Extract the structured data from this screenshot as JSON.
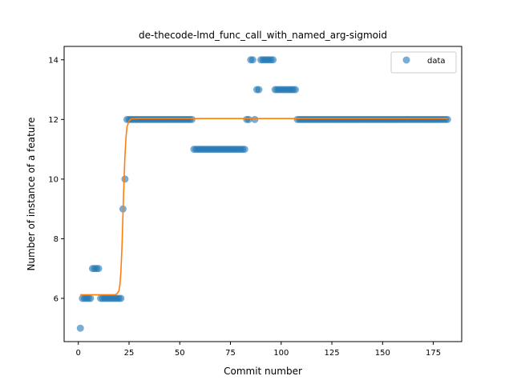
{
  "chart_data": {
    "type": "scatter",
    "title": "de-thecode-lmd_func_call_with_named_arg-sigmoid",
    "xlabel": "Commit number",
    "ylabel": "Number of instance of a feature",
    "xlim": [
      -7,
      189
    ],
    "ylim": [
      4.55,
      14.45
    ],
    "xticks": [
      0,
      25,
      50,
      75,
      100,
      125,
      150,
      175
    ],
    "yticks": [
      6,
      8,
      10,
      12,
      14
    ],
    "grid": false,
    "legend": {
      "position": "top-right",
      "entries": [
        "data"
      ]
    },
    "colors": {
      "data": "#1f77b4",
      "fit": "#ff7f0e"
    },
    "series": [
      {
        "name": "data",
        "kind": "scatter",
        "points": [
          [
            1,
            5
          ],
          [
            2,
            6
          ],
          [
            3,
            6
          ],
          [
            4,
            6
          ],
          [
            5,
            6
          ],
          [
            6,
            6
          ],
          [
            7,
            7
          ],
          [
            8,
            7
          ],
          [
            9,
            7
          ],
          [
            10,
            7
          ],
          [
            11,
            6
          ],
          [
            12,
            6
          ],
          [
            13,
            6
          ],
          [
            14,
            6
          ],
          [
            15,
            6
          ],
          [
            16,
            6
          ],
          [
            17,
            6
          ],
          [
            18,
            6
          ],
          [
            19,
            6
          ],
          [
            20,
            6
          ],
          [
            21,
            6
          ],
          [
            22,
            9
          ],
          [
            23,
            10
          ],
          [
            24,
            12
          ],
          [
            25,
            12
          ],
          [
            26,
            12
          ],
          [
            27,
            12
          ],
          [
            28,
            12
          ],
          [
            29,
            12
          ],
          [
            30,
            12
          ],
          [
            31,
            12
          ],
          [
            32,
            12
          ],
          [
            33,
            12
          ],
          [
            34,
            12
          ],
          [
            35,
            12
          ],
          [
            36,
            12
          ],
          [
            37,
            12
          ],
          [
            38,
            12
          ],
          [
            39,
            12
          ],
          [
            40,
            12
          ],
          [
            41,
            12
          ],
          [
            42,
            12
          ],
          [
            43,
            12
          ],
          [
            44,
            12
          ],
          [
            45,
            12
          ],
          [
            46,
            12
          ],
          [
            47,
            12
          ],
          [
            48,
            12
          ],
          [
            49,
            12
          ],
          [
            50,
            12
          ],
          [
            51,
            12
          ],
          [
            52,
            12
          ],
          [
            53,
            12
          ],
          [
            54,
            12
          ],
          [
            55,
            12
          ],
          [
            56,
            12
          ],
          [
            57,
            11
          ],
          [
            58,
            11
          ],
          [
            59,
            11
          ],
          [
            60,
            11
          ],
          [
            61,
            11
          ],
          [
            62,
            11
          ],
          [
            63,
            11
          ],
          [
            64,
            11
          ],
          [
            65,
            11
          ],
          [
            66,
            11
          ],
          [
            67,
            11
          ],
          [
            68,
            11
          ],
          [
            69,
            11
          ],
          [
            70,
            11
          ],
          [
            71,
            11
          ],
          [
            72,
            11
          ],
          [
            73,
            11
          ],
          [
            74,
            11
          ],
          [
            75,
            11
          ],
          [
            76,
            11
          ],
          [
            77,
            11
          ],
          [
            78,
            11
          ],
          [
            79,
            11
          ],
          [
            80,
            11
          ],
          [
            81,
            11
          ],
          [
            82,
            11
          ],
          [
            83,
            12
          ],
          [
            84,
            12
          ],
          [
            85,
            14
          ],
          [
            86,
            14
          ],
          [
            87,
            12
          ],
          [
            88,
            13
          ],
          [
            89,
            13
          ],
          [
            90,
            14
          ],
          [
            91,
            14
          ],
          [
            92,
            14
          ],
          [
            93,
            14
          ],
          [
            94,
            14
          ],
          [
            95,
            14
          ],
          [
            96,
            14
          ],
          [
            97,
            13
          ],
          [
            98,
            13
          ],
          [
            99,
            13
          ],
          [
            100,
            13
          ],
          [
            101,
            13
          ],
          [
            102,
            13
          ],
          [
            103,
            13
          ],
          [
            104,
            13
          ],
          [
            105,
            13
          ],
          [
            106,
            13
          ],
          [
            107,
            13
          ],
          [
            108,
            12
          ],
          [
            109,
            12
          ],
          [
            110,
            12
          ],
          [
            111,
            12
          ],
          [
            112,
            12
          ],
          [
            113,
            12
          ],
          [
            114,
            12
          ],
          [
            115,
            12
          ],
          [
            116,
            12
          ],
          [
            117,
            12
          ],
          [
            118,
            12
          ],
          [
            119,
            12
          ],
          [
            120,
            12
          ],
          [
            121,
            12
          ],
          [
            122,
            12
          ],
          [
            123,
            12
          ],
          [
            124,
            12
          ],
          [
            125,
            12
          ],
          [
            126,
            12
          ],
          [
            127,
            12
          ],
          [
            128,
            12
          ],
          [
            129,
            12
          ],
          [
            130,
            12
          ],
          [
            131,
            12
          ],
          [
            132,
            12
          ],
          [
            133,
            12
          ],
          [
            134,
            12
          ],
          [
            135,
            12
          ],
          [
            136,
            12
          ],
          [
            137,
            12
          ],
          [
            138,
            12
          ],
          [
            139,
            12
          ],
          [
            140,
            12
          ],
          [
            141,
            12
          ],
          [
            142,
            12
          ],
          [
            143,
            12
          ],
          [
            144,
            12
          ],
          [
            145,
            12
          ],
          [
            146,
            12
          ],
          [
            147,
            12
          ],
          [
            148,
            12
          ],
          [
            149,
            12
          ],
          [
            150,
            12
          ],
          [
            151,
            12
          ],
          [
            152,
            12
          ],
          [
            153,
            12
          ],
          [
            154,
            12
          ],
          [
            155,
            12
          ],
          [
            156,
            12
          ],
          [
            157,
            12
          ],
          [
            158,
            12
          ],
          [
            159,
            12
          ],
          [
            160,
            12
          ],
          [
            161,
            12
          ],
          [
            162,
            12
          ],
          [
            163,
            12
          ],
          [
            164,
            12
          ],
          [
            165,
            12
          ],
          [
            166,
            12
          ],
          [
            167,
            12
          ],
          [
            168,
            12
          ],
          [
            169,
            12
          ],
          [
            170,
            12
          ],
          [
            171,
            12
          ],
          [
            172,
            12
          ],
          [
            173,
            12
          ],
          [
            174,
            12
          ],
          [
            175,
            12
          ],
          [
            176,
            12
          ],
          [
            177,
            12
          ],
          [
            178,
            12
          ],
          [
            179,
            12
          ],
          [
            180,
            12
          ],
          [
            181,
            12
          ],
          [
            182,
            12
          ]
        ]
      },
      {
        "kind": "line",
        "points": [
          [
            1,
            6.12
          ],
          [
            18,
            6.12
          ],
          [
            19,
            6.15
          ],
          [
            20,
            6.25
          ],
          [
            20.5,
            6.45
          ],
          [
            21,
            6.9
          ],
          [
            21.5,
            7.7
          ],
          [
            22,
            8.8
          ],
          [
            22.5,
            9.9
          ],
          [
            23,
            10.8
          ],
          [
            23.5,
            11.4
          ],
          [
            24,
            11.75
          ],
          [
            25,
            11.95
          ],
          [
            26,
            12.02
          ],
          [
            30,
            12.03
          ],
          [
            182,
            12.03
          ]
        ]
      }
    ]
  }
}
